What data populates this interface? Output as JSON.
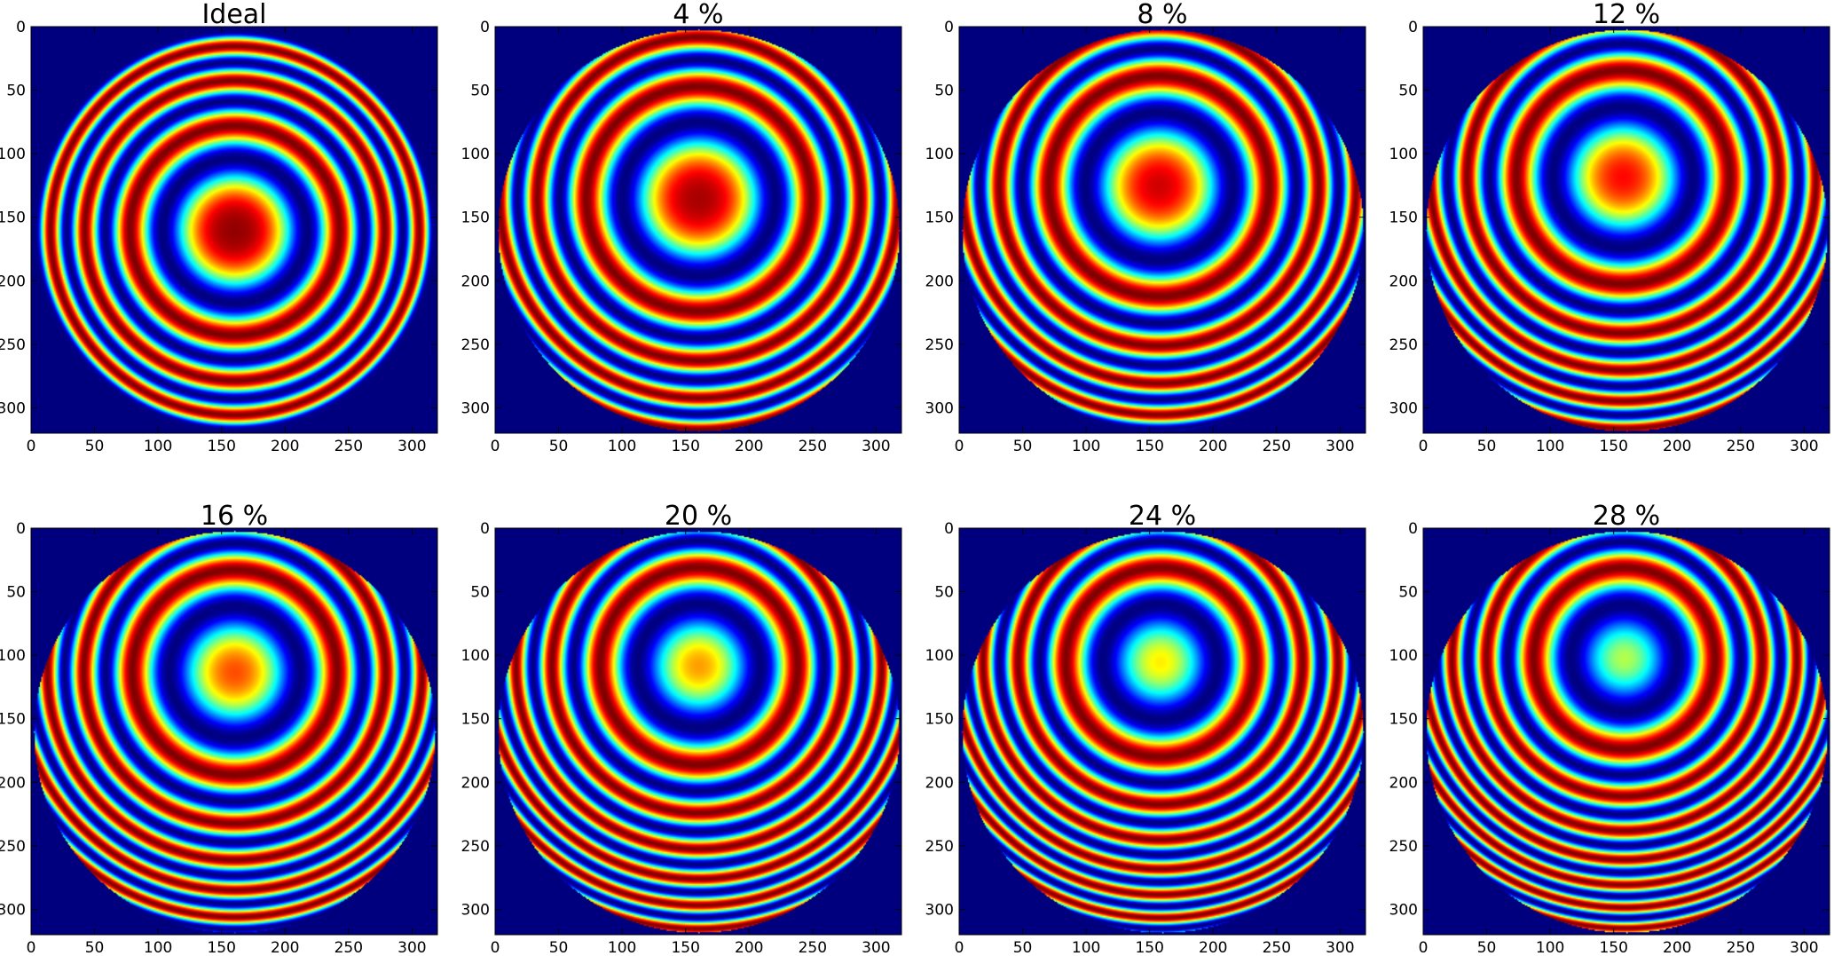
{
  "figure": {
    "colormap": "jet",
    "background_color": "#00007f",
    "tick_color": "#000000"
  },
  "chart_data": [
    {
      "type": "heatmap",
      "title": "Ideal",
      "tilt_percent": 0,
      "xlim": [
        0,
        320
      ],
      "ylim": [
        320,
        0
      ],
      "xticks": [
        0,
        50,
        100,
        150,
        200,
        250,
        300
      ],
      "yticks": [
        0,
        50,
        100,
        150,
        200,
        250,
        300
      ],
      "aperture_center": [
        160,
        160
      ],
      "fringe_center": [
        160,
        160
      ],
      "central_value": 0.98,
      "rings_to_edge": 3.5
    },
    {
      "type": "heatmap",
      "title": "4 %",
      "tilt_percent": 4,
      "xlim": [
        0,
        320
      ],
      "ylim": [
        320,
        0
      ],
      "xticks": [
        0,
        50,
        100,
        150,
        200,
        250,
        300
      ],
      "yticks": [
        0,
        50,
        100,
        150,
        200,
        250,
        300
      ],
      "aperture_center": [
        160,
        160
      ],
      "fringe_center": [
        160,
        135
      ],
      "central_value": 0.96,
      "rings_to_edge": 4.0
    },
    {
      "type": "heatmap",
      "title": "8 %",
      "tilt_percent": 8,
      "xlim": [
        0,
        320
      ],
      "ylim": [
        320,
        0
      ],
      "xticks": [
        0,
        50,
        100,
        150,
        200,
        250,
        300
      ],
      "yticks": [
        0,
        50,
        100,
        150,
        200,
        250,
        300
      ],
      "aperture_center": [
        160,
        160
      ],
      "fringe_center": [
        157,
        125
      ],
      "central_value": 0.92,
      "rings_to_edge": 4.5
    },
    {
      "type": "heatmap",
      "title": "12 %",
      "tilt_percent": 12,
      "xlim": [
        0,
        320
      ],
      "ylim": [
        320,
        0
      ],
      "xticks": [
        0,
        50,
        100,
        150,
        200,
        250,
        300
      ],
      "yticks": [
        0,
        50,
        100,
        150,
        200,
        250,
        300
      ],
      "aperture_center": [
        160,
        160
      ],
      "fringe_center": [
        157,
        118
      ],
      "central_value": 0.87,
      "rings_to_edge": 5.0
    },
    {
      "type": "heatmap",
      "title": "16 %",
      "tilt_percent": 16,
      "xlim": [
        0,
        320
      ],
      "ylim": [
        320,
        0
      ],
      "xticks": [
        0,
        50,
        100,
        150,
        200,
        250,
        300
      ],
      "yticks": [
        0,
        50,
        100,
        150,
        200,
        250,
        300
      ],
      "aperture_center": [
        160,
        160
      ],
      "fringe_center": [
        160,
        113
      ],
      "central_value": 0.8,
      "rings_to_edge": 5.5
    },
    {
      "type": "heatmap",
      "title": "20 %",
      "tilt_percent": 20,
      "xlim": [
        0,
        320
      ],
      "ylim": [
        320,
        0
      ],
      "xticks": [
        0,
        50,
        100,
        150,
        200,
        250,
        300
      ],
      "yticks": [
        0,
        50,
        100,
        150,
        200,
        250,
        300
      ],
      "aperture_center": [
        160,
        160
      ],
      "fringe_center": [
        160,
        108
      ],
      "central_value": 0.72,
      "rings_to_edge": 6.0
    },
    {
      "type": "heatmap",
      "title": "24 %",
      "tilt_percent": 24,
      "xlim": [
        0,
        320
      ],
      "ylim": [
        320,
        0
      ],
      "xticks": [
        0,
        50,
        100,
        150,
        200,
        250,
        300
      ],
      "yticks": [
        0,
        50,
        100,
        150,
        200,
        250,
        300
      ],
      "aperture_center": [
        160,
        160
      ],
      "fringe_center": [
        158,
        105
      ],
      "central_value": 0.64,
      "rings_to_edge": 6.5
    },
    {
      "type": "heatmap",
      "title": "28 %",
      "tilt_percent": 28,
      "xlim": [
        0,
        320
      ],
      "ylim": [
        320,
        0
      ],
      "xticks": [
        0,
        50,
        100,
        150,
        200,
        250,
        300
      ],
      "yticks": [
        0,
        50,
        100,
        150,
        200,
        250,
        300
      ],
      "aperture_center": [
        160,
        160
      ],
      "fringe_center": [
        158,
        102
      ],
      "central_value": 0.55,
      "rings_to_edge": 7.0
    }
  ]
}
